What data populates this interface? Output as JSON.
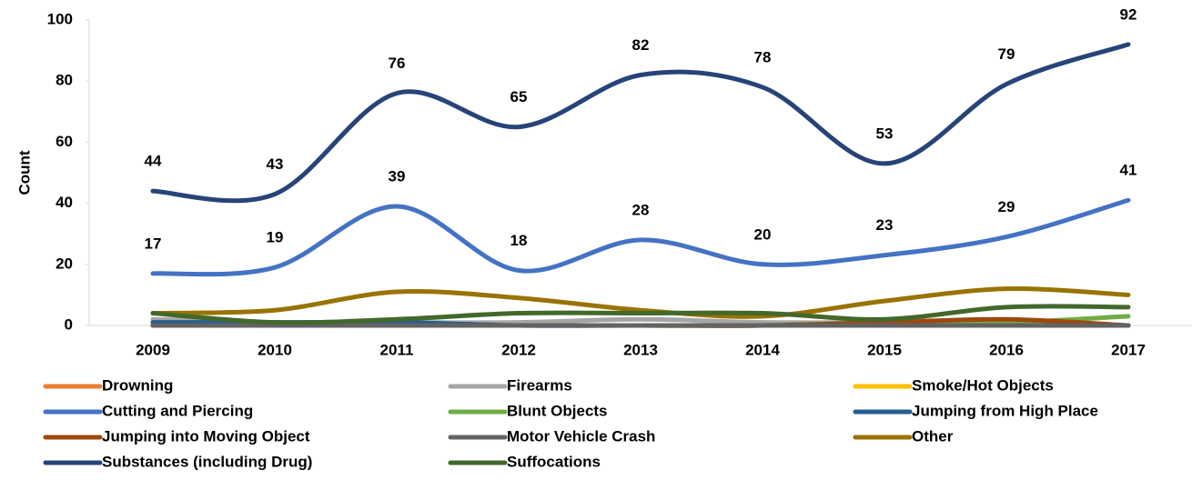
{
  "chart_data": {
    "type": "line",
    "smooth": true,
    "y_label": "Count",
    "categories": [
      "2009",
      "2010",
      "2011",
      "2012",
      "2013",
      "2014",
      "2015",
      "2016",
      "2017"
    ],
    "ylim": [
      0,
      100
    ],
    "yticks": [
      0,
      20,
      40,
      60,
      80,
      100
    ],
    "grid": false,
    "series": [
      {
        "name": "Drowning",
        "color": "#ed7d31",
        "values": [
          0,
          0,
          0,
          0,
          0,
          0,
          1,
          1,
          0
        ]
      },
      {
        "name": "Firearms",
        "color": "#a5a5a5",
        "values": [
          2,
          1,
          1,
          1,
          2,
          1,
          1,
          1,
          0
        ]
      },
      {
        "name": "Smoke/Hot Objects",
        "color": "#ffc000",
        "values": [
          0,
          0,
          0,
          0,
          0,
          0,
          0,
          0,
          0
        ]
      },
      {
        "name": "Cutting and Piercing",
        "color": "#4472c4",
        "values": [
          17,
          19,
          39,
          18,
          28,
          20,
          23,
          29,
          41
        ],
        "data_labels": true
      },
      {
        "name": "Blunt Objects",
        "color": "#70ad47",
        "values": [
          0,
          0,
          0,
          0,
          0,
          0,
          1,
          1,
          3
        ]
      },
      {
        "name": "Jumping from High Place",
        "color": "#255e91",
        "values": [
          1,
          1,
          1,
          0,
          0,
          0,
          0,
          0,
          0
        ]
      },
      {
        "name": "Jumping into Moving Object",
        "color": "#9e480e",
        "values": [
          0,
          0,
          0,
          0,
          0,
          0,
          1,
          2,
          0
        ]
      },
      {
        "name": "Motor Vehicle Crash",
        "color": "#636363",
        "values": [
          0,
          0,
          0,
          0,
          0,
          0,
          0,
          0,
          0
        ]
      },
      {
        "name": "Other",
        "color": "#997300",
        "values": [
          4,
          5,
          11,
          9,
          5,
          3,
          8,
          12,
          10
        ]
      },
      {
        "name": "Substances (including Drug)",
        "color": "#264478",
        "values": [
          44,
          43,
          76,
          65,
          82,
          78,
          53,
          79,
          92
        ],
        "data_labels": true
      },
      {
        "name": "Suffocations",
        "color": "#43682b",
        "values": [
          4,
          1,
          2,
          4,
          4,
          4,
          2,
          6,
          6
        ]
      }
    ]
  }
}
